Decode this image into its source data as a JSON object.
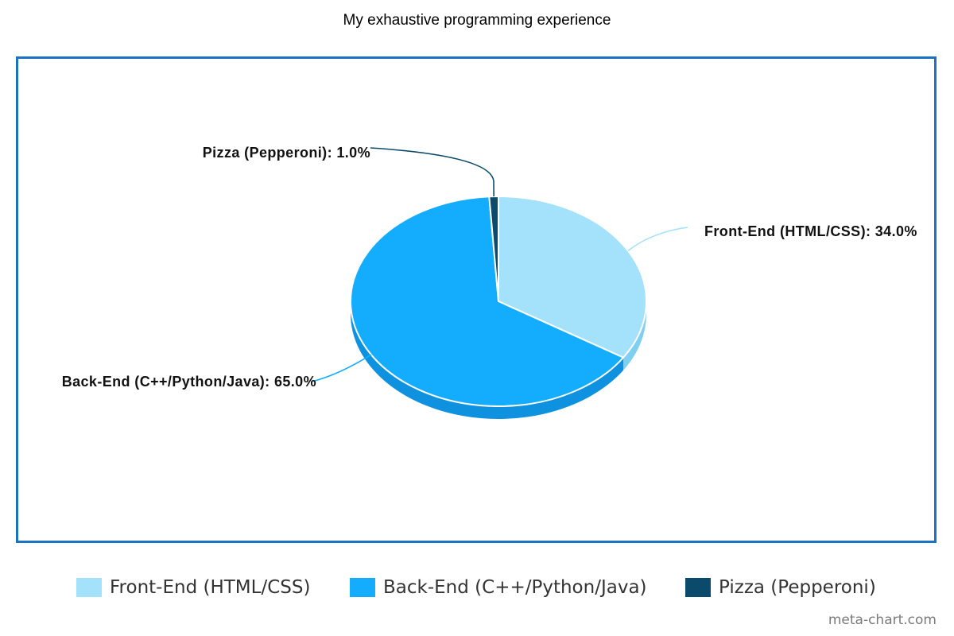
{
  "chart_data": {
    "type": "pie",
    "title": "My exhaustive programming experience",
    "slices": [
      {
        "label": "Front-End (HTML/CSS)",
        "value": 34.0,
        "value_label": "Front-End (HTML/CSS): 34.0%",
        "color": "#a4e1fb",
        "side_color": "#7fcff1"
      },
      {
        "label": "Back-End (C++/Python/Java)",
        "value": 65.0,
        "value_label": "Back-End (C++/Python/Java): 65.0%",
        "color": "#14adfe",
        "side_color": "#0e92e0"
      },
      {
        "label": "Pizza (Pepperoni)",
        "value": 1.0,
        "value_label": "Pizza (Pepperoni): 1.0%",
        "color": "#0b4a6a",
        "side_color": "#083a54"
      }
    ],
    "legend_position": "bottom",
    "three_d": true
  },
  "legend": {
    "items": [
      "Front-End (HTML/CSS)",
      "Back-End (C++/Python/Java)",
      "Pizza (Pepperoni)"
    ]
  },
  "frame_color": "#1a73c2",
  "watermark": "meta-chart.com"
}
